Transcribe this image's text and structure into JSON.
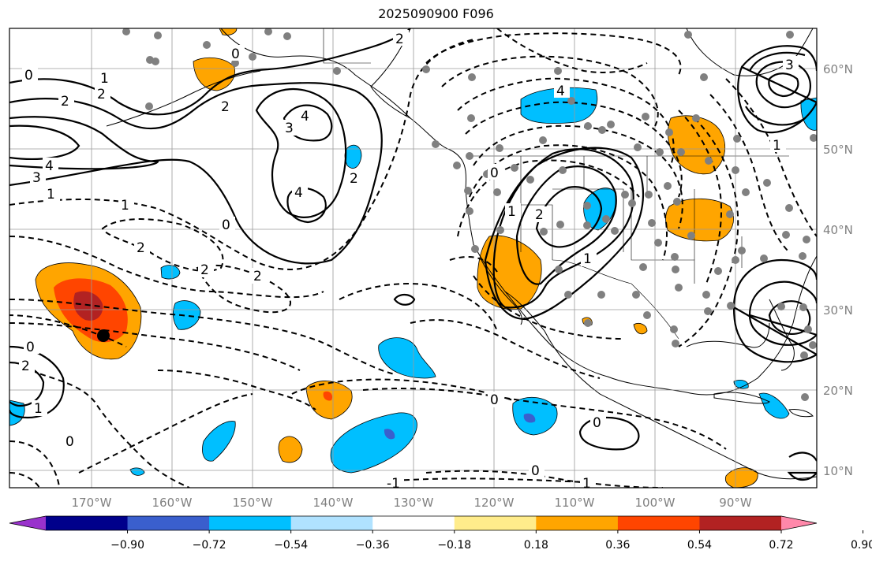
{
  "title": "2025090900 F096",
  "lon_labels": [
    "170°W",
    "160°W",
    "150°W",
    "140°W",
    "130°W",
    "120°W",
    "110°W",
    "100°W",
    "90°W"
  ],
  "lat_labels": [
    "60°N",
    "50°N",
    "40°N",
    "30°N",
    "20°N",
    "10°N"
  ],
  "colorbar": {
    "ticks": [
      "−0.90",
      "−0.72",
      "−0.54",
      "−0.36",
      "−0.18",
      "0.18",
      "0.36",
      "0.54",
      "0.72",
      "0.90"
    ],
    "colors": [
      "#9932CC",
      "#00008B",
      "#3A5FCD",
      "#00BFFF",
      "#B0E2FF",
      "#FFFFFF",
      "#FFEC8B",
      "#FFA500",
      "#FF4500",
      "#B22222",
      "#FF88AA"
    ]
  },
  "contour_labels": {
    "c1": "0",
    "c2": "1",
    "c3": "2",
    "c4": "2",
    "c5": "4",
    "c6": "3",
    "c7": "2",
    "c8": "1",
    "c9": "1",
    "c10": "2",
    "c11": "2",
    "c12": "0",
    "c13": "2",
    "c14": "0",
    "c15": "1",
    "c16": "0",
    "c17": "2",
    "c18": "3",
    "c19": "4",
    "c20": "4",
    "c21": "2",
    "c22": "3",
    "c23": "4",
    "c24": "0",
    "c25": "2",
    "c26": "0",
    "c27": "1",
    "c28": "2",
    "c29": "1",
    "c30": "0",
    "c31": "0",
    "c32": "-1",
    "c33": "1",
    "c34": "0",
    "c35": "1"
  }
}
